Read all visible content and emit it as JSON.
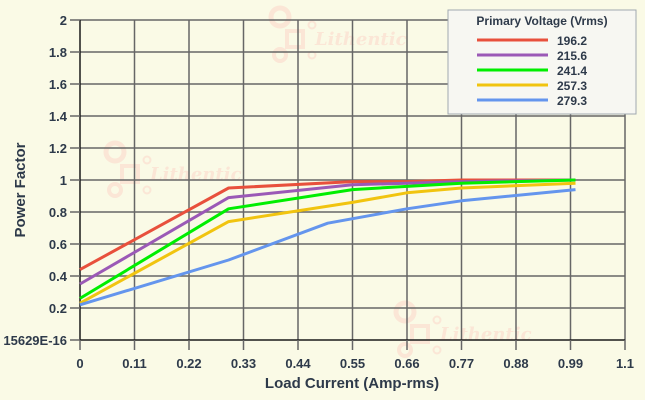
{
  "chart_data": {
    "type": "line",
    "title": "",
    "xlabel": "Load Current (Amp-rms)",
    "ylabel": "Power Factor",
    "xlim": [
      0,
      1.1
    ],
    "ylim": [
      0,
      2
    ],
    "x_ticks": [
      "0",
      "0.11",
      "0.22",
      "0.33",
      "0.44",
      "0.55",
      "0.66",
      "0.77",
      "0.88",
      "0.99",
      "1.1"
    ],
    "y_ticks": [
      "15629E-16",
      "0.2",
      "0.4",
      "0.6",
      "0.8",
      "1",
      "1.2",
      "1.4",
      "1.6",
      "1.8",
      "2"
    ],
    "grid": true,
    "legend": {
      "title": "Primary Voltage (Vrms)",
      "position": "top-right"
    },
    "series": [
      {
        "name": "196.2",
        "color": "#e8503c",
        "x": [
          0,
          0.3,
          0.55,
          0.66,
          0.77,
          1.0
        ],
        "values": [
          0.44,
          0.95,
          0.99,
          0.99,
          1.0,
          1.0
        ]
      },
      {
        "name": "215.6",
        "color": "#9b59b6",
        "x": [
          0,
          0.3,
          0.55,
          0.66,
          0.77,
          1.0
        ],
        "values": [
          0.35,
          0.89,
          0.97,
          0.98,
          0.99,
          1.0
        ]
      },
      {
        "name": "241.4",
        "color": "#00ee00",
        "x": [
          0,
          0.3,
          0.55,
          0.66,
          0.77,
          1.0
        ],
        "values": [
          0.26,
          0.82,
          0.94,
          0.96,
          0.98,
          1.0
        ]
      },
      {
        "name": "257.3",
        "color": "#f1c40f",
        "x": [
          0,
          0.3,
          0.55,
          0.66,
          0.77,
          1.0
        ],
        "values": [
          0.23,
          0.74,
          0.86,
          0.92,
          0.95,
          0.98
        ]
      },
      {
        "name": "279.3",
        "color": "#6495ed",
        "x": [
          0,
          0.3,
          0.5,
          0.66,
          0.77,
          1.0
        ],
        "values": [
          0.22,
          0.5,
          0.73,
          0.82,
          0.87,
          0.94
        ]
      }
    ]
  },
  "watermark": "Lithentic"
}
